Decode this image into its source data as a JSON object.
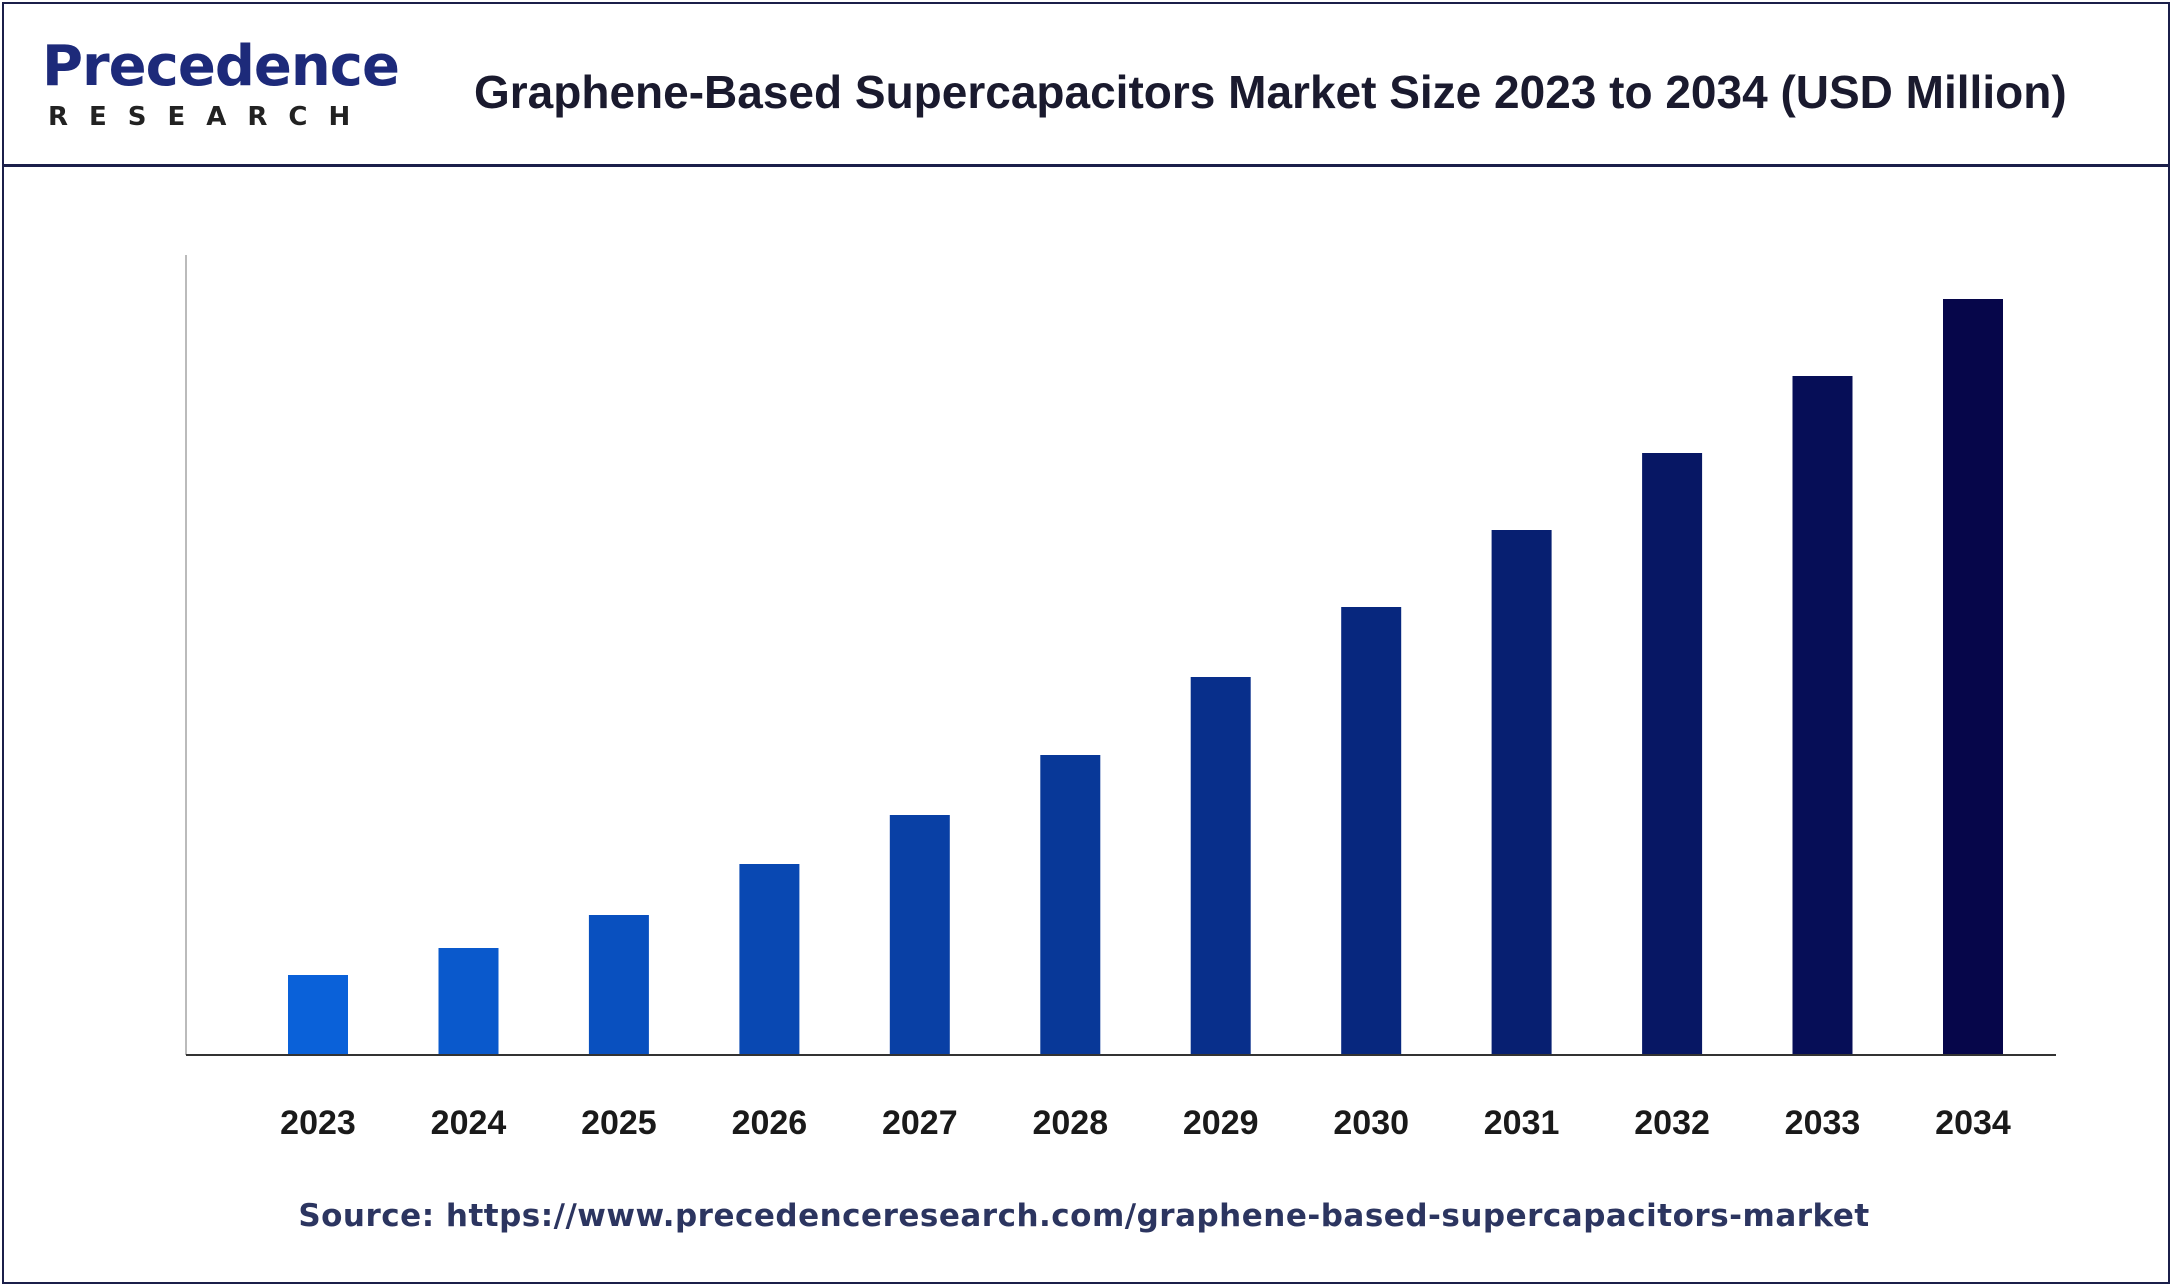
{
  "brand": {
    "logo_top": "Precedence",
    "logo_bottom": "RESEARCH"
  },
  "title": "Graphene-Based Supercapacitors Market Size 2023 to 2034 (USD Million)",
  "source": "Source: https://www.precedenceresearch.com/graphene-based-supercapacitors-market",
  "colors": {
    "frame": "#1b1f4a",
    "bar_start": "#0a61d9",
    "bar_end": "#06064a",
    "axis": "#333333"
  },
  "chart_data": {
    "type": "bar",
    "title": "Graphene-Based Supercapacitors Market Size 2023 to 2034 (USD Million)",
    "xlabel": "",
    "ylabel": "",
    "categories": [
      "2023",
      "2024",
      "2025",
      "2026",
      "2027",
      "2028",
      "2029",
      "2030",
      "2031",
      "2032",
      "2033",
      "2034"
    ],
    "values": [
      80,
      107,
      140,
      191,
      240,
      300,
      378,
      448,
      525,
      602,
      679,
      756
    ],
    "ylim": [
      0,
      800
    ],
    "grid": false,
    "legend": "none",
    "value_labels_shown": false
  }
}
